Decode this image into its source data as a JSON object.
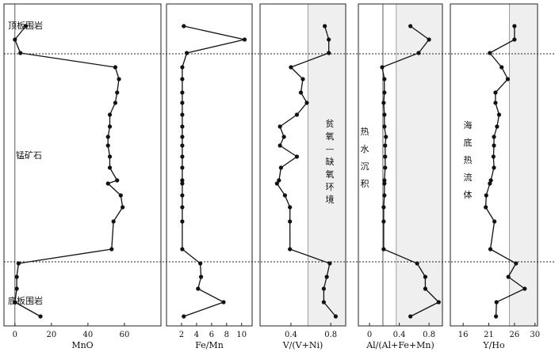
{
  "zones": [
    {
      "key": "top",
      "label": "顶板围岩"
    },
    {
      "key": "ore",
      "label": "锰矿石"
    },
    {
      "key": "bottom",
      "label": "底板围岩"
    }
  ],
  "annotations": [
    {
      "panel": 2,
      "chars": [
        "贫",
        "氧",
        "—",
        "缺",
        "氧",
        "环",
        "境"
      ]
    },
    {
      "panel": 3,
      "chars": [
        "热",
        "水",
        "沉",
        "积"
      ]
    },
    {
      "panel": 4,
      "chars": [
        "海",
        "底",
        "热",
        "流",
        "体"
      ]
    }
  ],
  "colors": {
    "line": "#111111",
    "shade": "#efefef",
    "guide": "#666666"
  },
  "chart_data": [
    {
      "type": "line",
      "xlabel": "MnO",
      "xlim": [
        -6,
        80
      ],
      "ticks": [
        0,
        20,
        40,
        60
      ],
      "ref_line": 0,
      "shade": null,
      "x": [
        6,
        0,
        3,
        55,
        57,
        56,
        55,
        52,
        52,
        51,
        51,
        52,
        52,
        56,
        51,
        58,
        59,
        54,
        53,
        2,
        1,
        1,
        0,
        14
      ]
    },
    {
      "type": "line",
      "xlabel": "Fe/Mn",
      "xlim": [
        0,
        11.4
      ],
      "ticks": [
        2,
        4,
        6,
        8,
        10
      ],
      "ref_line": null,
      "shade": null,
      "x": [
        2.3,
        10.4,
        2.7,
        2.1,
        2.1,
        2.1,
        2.1,
        2.1,
        2.1,
        2.1,
        2.1,
        2.1,
        2.1,
        2.1,
        2.1,
        2.1,
        2.1,
        2.1,
        2.1,
        4.5,
        4.6,
        4.2,
        7.6,
        2.3
      ]
    },
    {
      "type": "line",
      "xlabel": "V/(V+Ni)",
      "xlim": [
        0.09,
        0.95
      ],
      "ticks": [
        0.4,
        0.8
      ],
      "ref_line": null,
      "shade": [
        0.57,
        0.95
      ],
      "x": [
        0.74,
        0.78,
        0.78,
        0.4,
        0.52,
        0.5,
        0.56,
        0.46,
        0.29,
        0.33,
        0.29,
        0.46,
        0.3,
        0.28,
        0.26,
        0.34,
        0.39,
        0.39,
        0.39,
        0.79,
        0.76,
        0.73,
        0.73,
        0.85
      ]
    },
    {
      "type": "line",
      "xlabel": "Al/(Al+Fe+Mn)",
      "xlim": [
        -0.15,
        0.98
      ],
      "ticks": [
        0,
        0.4,
        0.8
      ],
      "ref_line": 0.18,
      "shade": [
        0.36,
        0.98
      ],
      "x": [
        0.55,
        0.8,
        0.66,
        0.17,
        0.2,
        0.2,
        0.19,
        0.2,
        0.2,
        0.22,
        0.21,
        0.21,
        0.21,
        0.2,
        0.2,
        0.2,
        0.19,
        0.19,
        0.19,
        0.64,
        0.75,
        0.75,
        0.93,
        0.55
      ]
    },
    {
      "type": "line",
      "xlabel": "Y/Ho",
      "xlim": [
        13.5,
        30.5
      ],
      "ticks": [
        16,
        21,
        26,
        30
      ],
      "ref_line": null,
      "shade": [
        25,
        30.5
      ],
      "x": [
        26,
        26,
        21.2,
        23.5,
        24.7,
        22.3,
        22.3,
        23,
        22.6,
        22,
        22,
        21.9,
        22,
        21.4,
        21.2,
        20.5,
        20.4,
        22.1,
        21.3,
        26.3,
        24.8,
        28,
        22.5,
        22.4
      ]
    }
  ],
  "y_positions": [
    33,
    50,
    67,
    85,
    100,
    117,
    130,
    145,
    160,
    173,
    184,
    198,
    212,
    228,
    232,
    247,
    262,
    280,
    315,
    333,
    350,
    365,
    382,
    400
  ]
}
